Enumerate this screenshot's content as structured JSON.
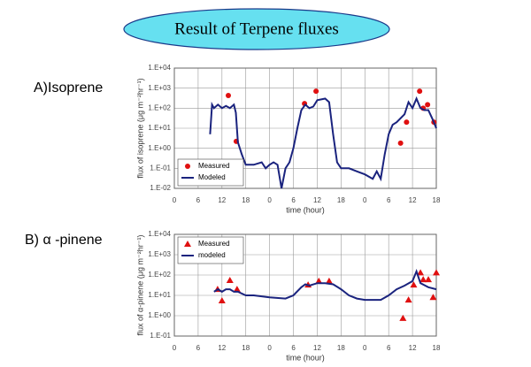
{
  "slide_title": "Result of Terpene fluxes",
  "chart_data": [
    {
      "type": "line",
      "label": "A)Isoprene",
      "xlabel": "time (hour)",
      "ylabel": "flux of isoprene (μg m⁻²hr⁻¹)",
      "log_y": true,
      "grid": true,
      "legend": "lower left",
      "xlim": [
        0,
        66
      ],
      "xticks": [
        0,
        6,
        12,
        18,
        {
          "value": 24,
          "label": "0"
        },
        {
          "value": 30,
          "label": "6"
        },
        {
          "value": 36,
          "label": "12"
        },
        {
          "value": 42,
          "label": "18"
        },
        {
          "value": 48,
          "label": "0"
        },
        {
          "value": 54,
          "label": "6"
        },
        {
          "value": 60,
          "label": "12"
        },
        {
          "value": 66,
          "label": "18"
        }
      ],
      "ylim": [
        0.01,
        10000
      ],
      "yticks": [
        {
          "value": 10000,
          "label": "1.E+04"
        },
        {
          "value": 1000,
          "label": "1.E+03"
        },
        {
          "value": 100,
          "label": "1.E+02"
        },
        {
          "value": 10,
          "label": "1.E+01"
        },
        {
          "value": 1,
          "label": "1.E+00"
        },
        {
          "value": 0.1,
          "label": "1.E-01"
        },
        {
          "value": 0.01,
          "label": "1.E-02"
        }
      ],
      "series": [
        {
          "name": "Measured",
          "color": "#e01010",
          "marker": "circle",
          "x": [
            13.6,
            15.6,
            32.8,
            35.7,
            57,
            58.5,
            61.8,
            62.7,
            63.8,
            65.4
          ],
          "values": [
            430,
            2.2,
            170,
            700,
            1.8,
            20,
            700,
            100,
            150,
            20
          ]
        },
        {
          "name": "Modeled",
          "color": "#1a237e",
          "marker": "line",
          "x": [
            9,
            9.5,
            10,
            11,
            12,
            13,
            14,
            15,
            15.5,
            16,
            17,
            18,
            20,
            22,
            23,
            24,
            25,
            26,
            27,
            28,
            29,
            30,
            31,
            32,
            33,
            34,
            35,
            36,
            38,
            39,
            40,
            41,
            42,
            44,
            46,
            48,
            50,
            51,
            52,
            53,
            54,
            55,
            56,
            58,
            59,
            60,
            61,
            62,
            63,
            64,
            65,
            66
          ],
          "values": [
            5,
            150,
            100,
            150,
            100,
            130,
            100,
            150,
            60,
            2,
            0.5,
            0.15,
            0.15,
            0.2,
            0.1,
            0.15,
            0.2,
            0.15,
            0.01,
            0.1,
            0.2,
            1,
            10,
            80,
            150,
            100,
            120,
            250,
            300,
            200,
            5,
            0.2,
            0.1,
            0.1,
            0.07,
            0.05,
            0.03,
            0.07,
            0.03,
            0.5,
            5,
            15,
            20,
            50,
            200,
            100,
            300,
            100,
            80,
            80,
            30,
            10
          ]
        }
      ]
    },
    {
      "type": "line",
      "label": "B) α -pinene",
      "xlabel": "time (hour)",
      "ylabel": "flux of α-pinene (μg m⁻²hr⁻¹)",
      "log_y": true,
      "grid": true,
      "legend": "upper left",
      "xlim": [
        0,
        66
      ],
      "xticks": [
        0,
        6,
        12,
        18,
        {
          "value": 24,
          "label": "0"
        },
        {
          "value": 30,
          "label": "6"
        },
        {
          "value": 36,
          "label": "12"
        },
        {
          "value": 42,
          "label": "18"
        },
        {
          "value": 48,
          "label": "0"
        },
        {
          "value": 54,
          "label": "6"
        },
        {
          "value": 60,
          "label": "12"
        },
        {
          "value": 66,
          "label": "18"
        }
      ],
      "ylim": [
        0.1,
        10000
      ],
      "yticks": [
        {
          "value": 10000,
          "label": "1.E+04"
        },
        {
          "value": 1000,
          "label": "1.E+03"
        },
        {
          "value": 100,
          "label": "1.E+02"
        },
        {
          "value": 10,
          "label": "1.E+01"
        },
        {
          "value": 1,
          "label": "1.E+00"
        },
        {
          "value": 0.1,
          "label": "1.E-01"
        }
      ],
      "series": [
        {
          "name": "Measured",
          "color": "#e01010",
          "marker": "triangle",
          "x": [
            10.9,
            12,
            14,
            15.8,
            33.7,
            36.4,
            39,
            57.6,
            59,
            60.3,
            62,
            62.7,
            64,
            65.2,
            66
          ],
          "values": [
            20,
            5.5,
            55,
            20,
            33,
            50,
            50,
            0.75,
            6,
            33,
            130,
            60,
            60,
            8,
            130
          ]
        },
        {
          "name": "modeled",
          "color": "#1a237e",
          "marker": "line",
          "x": [
            10,
            11,
            12,
            13,
            14,
            15,
            16,
            18,
            20,
            24,
            28,
            30,
            32,
            33,
            34,
            36,
            38,
            40,
            42,
            44,
            46,
            48,
            52,
            54,
            56,
            58,
            60,
            61,
            62,
            64,
            66
          ],
          "values": [
            15,
            20,
            15,
            20,
            20,
            15,
            15,
            10,
            10,
            8,
            7,
            10,
            25,
            35,
            30,
            40,
            40,
            35,
            20,
            10,
            7,
            6,
            6,
            10,
            20,
            30,
            50,
            150,
            40,
            25,
            20
          ]
        }
      ]
    }
  ]
}
